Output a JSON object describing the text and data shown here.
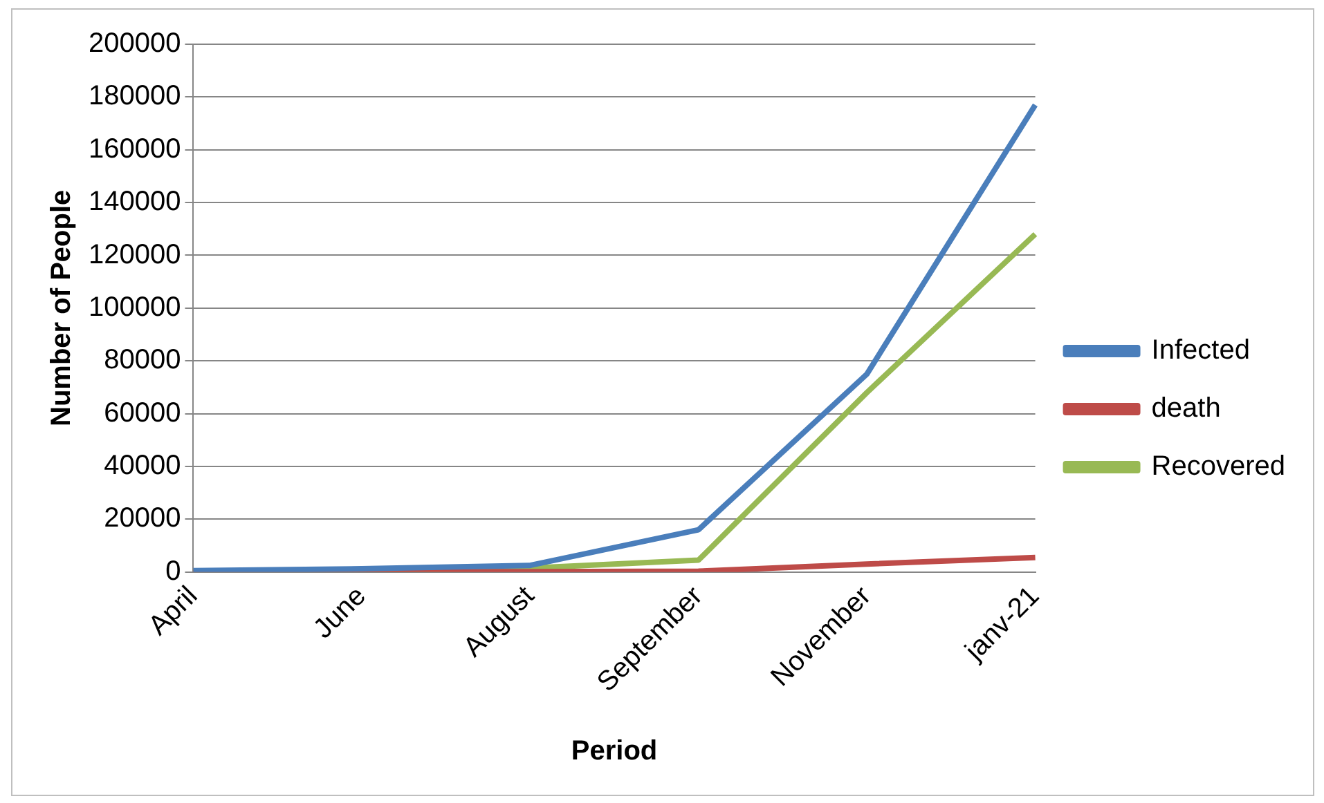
{
  "chart_data": {
    "type": "line",
    "xlabel": "Period",
    "ylabel": "Number of People",
    "categories": [
      "April",
      "June",
      "August",
      "September",
      "November",
      "janv-21"
    ],
    "series": [
      {
        "name": "Infected",
        "color": "#4a7ebb",
        "values": [
          500,
          1200,
          2500,
          16000,
          75000,
          177000
        ]
      },
      {
        "name": "death",
        "color": "#be4b48",
        "values": [
          0,
          50,
          100,
          300,
          3000,
          5500
        ]
      },
      {
        "name": "Recovered",
        "color": "#98b954",
        "values": [
          200,
          600,
          1500,
          4500,
          68000,
          128000
        ]
      }
    ],
    "ylim": [
      0,
      200000
    ],
    "yticks": [
      0,
      20000,
      40000,
      60000,
      80000,
      100000,
      120000,
      140000,
      160000,
      180000,
      200000
    ],
    "grid": "y",
    "legend": "right",
    "marker": "none",
    "line_style": "solid"
  }
}
